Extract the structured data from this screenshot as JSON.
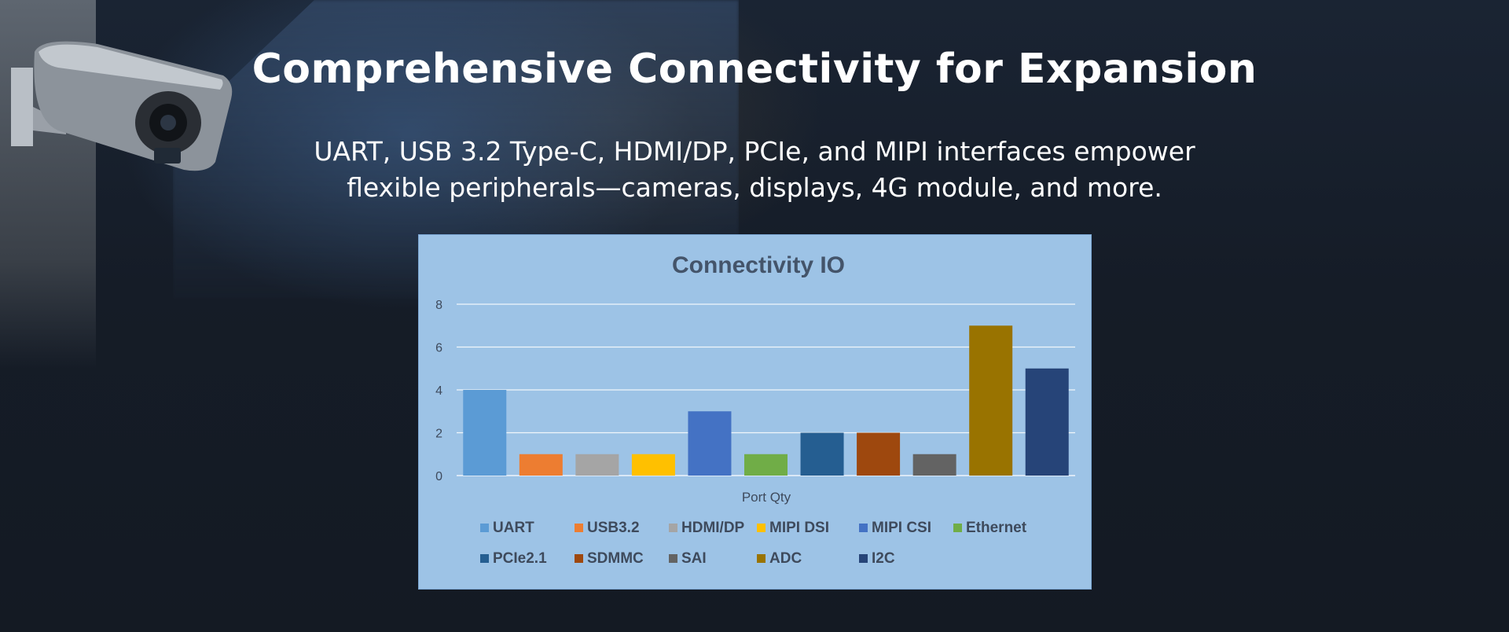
{
  "headline": "Comprehensive Connectivity for Expansion",
  "subtitle_lines": [
    "UART, USB 3.2 Type-C, HDMI/DP, PCIe, and MIPI interfaces empower",
    "flexible peripherals—cameras, displays, 4G module, and more."
  ],
  "chart_data": {
    "type": "bar",
    "title": "Connectivity IO",
    "xlabel": "Port Qty",
    "ylabel": "",
    "ylim": [
      0,
      8
    ],
    "yticks": [
      0,
      2,
      4,
      6,
      8
    ],
    "grid": true,
    "legend_position": "bottom",
    "categories": [
      "UART",
      "USB3.2",
      "HDMI/DP",
      "MIPI DSI",
      "MIPI CSI",
      "Ethernet",
      "PCIe2.1",
      "SDMMC",
      "SAI",
      "ADC",
      "I2C"
    ],
    "values": [
      4,
      1,
      1,
      1,
      3,
      1,
      2,
      2,
      1,
      7,
      5
    ],
    "colors": [
      "#5b9bd5",
      "#ed7d31",
      "#a5a5a5",
      "#ffc000",
      "#4472c4",
      "#70ad47",
      "#255e91",
      "#9e480e",
      "#636363",
      "#997300",
      "#264478"
    ]
  },
  "colors": {
    "chart_background": "#9dc3e6",
    "text_white": "#ffffff"
  }
}
